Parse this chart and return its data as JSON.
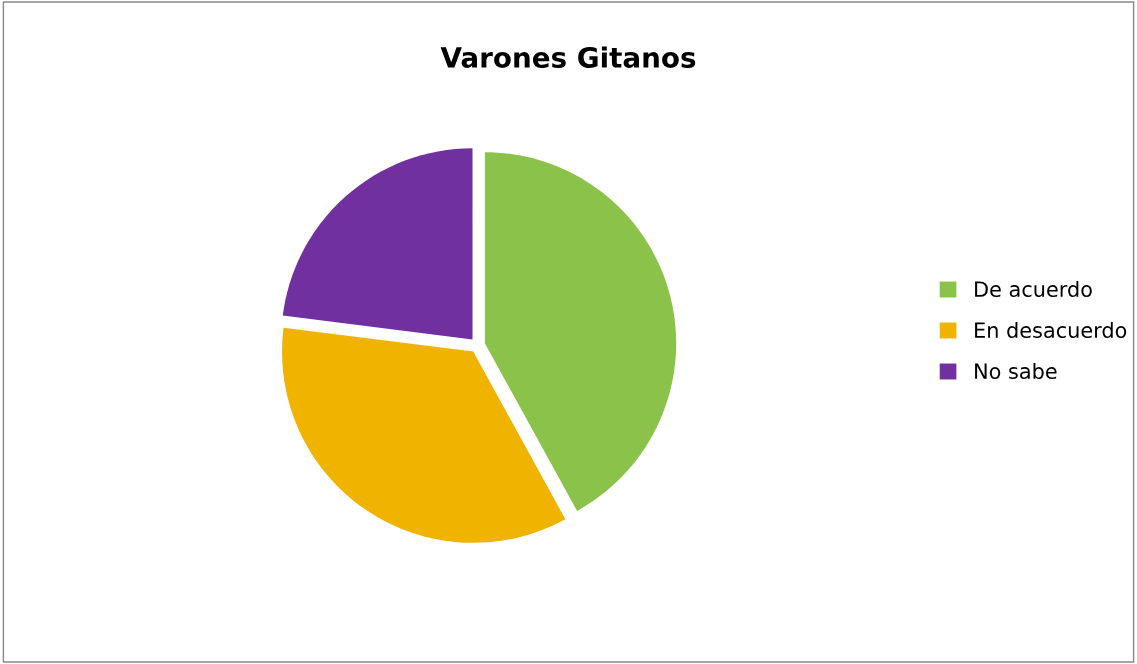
{
  "chart_data": {
    "type": "pie",
    "title": "Varones Gitanos",
    "categories": [
      "De acuerdo",
      "En desacuerdo",
      "No sabe"
    ],
    "values": [
      42,
      35,
      23
    ],
    "colors": [
      "#8bc34a",
      "#f0b400",
      "#7030a0"
    ],
    "legend": "right"
  }
}
